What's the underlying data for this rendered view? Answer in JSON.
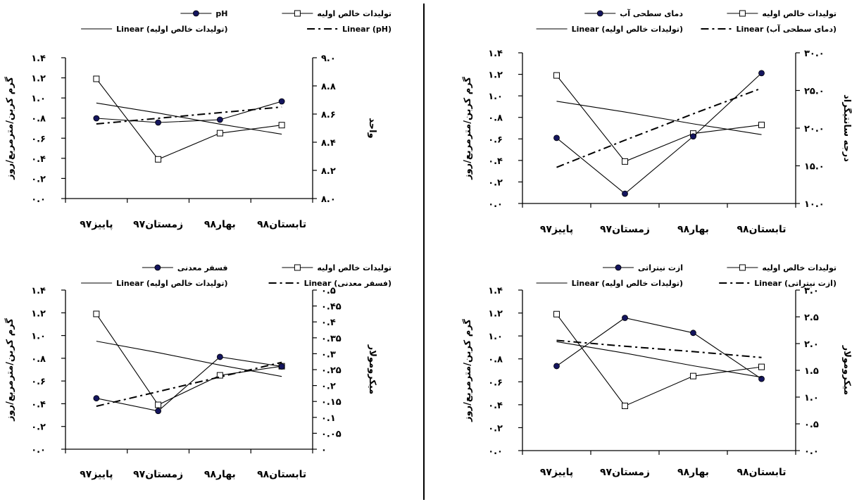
{
  "chart_data": [
    {
      "type": "line",
      "categories": [
        "پاییز۹۷",
        "زمستان۹۷",
        "بهار۹۸",
        "تابستان۹۸"
      ],
      "ylabel": "گرم کربن/مترمربع/روز",
      "ylim": [
        0,
        1.4
      ],
      "yticks": [
        "۰.۰",
        "۰.۲",
        "۰.۴",
        "۰.۶",
        "۰.۸",
        "۱.۰",
        "۱.۲",
        "۱.۴"
      ],
      "y2label": "واحد",
      "y2lim": [
        8.0,
        9.0
      ],
      "y2ticks": [
        "۸.۰",
        "۸.۲",
        "۸.۴",
        "۸.۶",
        "۸.۸",
        "۹.۰"
      ],
      "legend": [
        {
          "label": "تولیدات خالص اولیه",
          "style": "open-square"
        },
        {
          "label": "pH",
          "style": "dot"
        },
        {
          "label": "Linear (pH)",
          "style": "dashdot"
        },
        {
          "label": "Linear (تولیدات خالص اولیه)",
          "style": "plain"
        }
      ],
      "series": [
        {
          "name": "تولیدات خالص اولیه",
          "axis": "left",
          "marker": "square",
          "values": [
            1.19,
            0.39,
            0.65,
            0.73
          ]
        },
        {
          "name": "pH",
          "axis": "right",
          "marker": "dot",
          "values": [
            8.57,
            8.54,
            8.56,
            8.69
          ]
        }
      ],
      "trendlines": [
        {
          "name": "Linear (pH)",
          "axis": "right",
          "style": "dashdot",
          "values": [
            8.53,
            8.57,
            8.61,
            8.65
          ]
        },
        {
          "name": "Linear (تولیدات خالص اولیه)",
          "axis": "left",
          "style": "plain",
          "values": [
            0.95,
            0.85,
            0.74,
            0.64
          ]
        }
      ]
    },
    {
      "type": "line",
      "categories": [
        "پاییز۹۷",
        "زمستان۹۷",
        "بهار۹۸",
        "تابستان۹۸"
      ],
      "ylabel": "گرم کربن/مترمربع/روز",
      "ylim": [
        0,
        1.4
      ],
      "yticks": [
        "۰.۰",
        "۰.۲",
        "۰.۴",
        "۰.۶",
        "۰.۸",
        "۱.۰",
        "۱.۲",
        "۱.۴"
      ],
      "y2label": "درجه سانتیگراد",
      "y2lim": [
        10.0,
        30.0
      ],
      "y2ticks": [
        "۱۰.۰",
        "۱۵.۰",
        "۲۰.۰",
        "۲۵.۰",
        "۳۰.۰"
      ],
      "legend": [
        {
          "label": "تولیدات خالص اولیه",
          "style": "open-square"
        },
        {
          "label": "دمای سطحی آب",
          "style": "dot"
        },
        {
          "label": "Linear (دمای سطحی آب)",
          "style": "dashdot"
        },
        {
          "label": "Linear (تولیدات خالص اولیه)",
          "style": "plain"
        }
      ],
      "series": [
        {
          "name": "تولیدات خالص اولیه",
          "axis": "left",
          "marker": "square",
          "values": [
            1.19,
            0.39,
            0.65,
            0.73
          ]
        },
        {
          "name": "دمای سطحی آب",
          "axis": "right",
          "marker": "dot",
          "values": [
            18.7,
            11.3,
            18.9,
            27.3
          ]
        },
        {
          "name": "Linear (دمای سطحی آب)",
          "axis": "right",
          "style": "dashdot",
          "values": [
            14.8,
            18.4,
            21.9,
            25.3
          ]
        },
        {
          "name": "Linear (تولیدات خالص اولیه)",
          "axis": "left",
          "style": "plain",
          "values": [
            0.95,
            0.85,
            0.74,
            0.64
          ]
        }
      ]
    },
    {
      "type": "line",
      "categories": [
        "پاییز۹۷",
        "زمستان۹۷",
        "بهار۹۸",
        "تابستان۹۸"
      ],
      "ylabel": "گرم کربن/مترمربع/روز",
      "ylim": [
        0,
        1.4
      ],
      "yticks": [
        "۰.۰",
        "۰.۲",
        "۰.۴",
        "۰.۶",
        "۰.۸",
        "۱.۰",
        "۱.۲",
        "۱.۴"
      ],
      "y2label": "میکرومولار",
      "y2lim": [
        0,
        0.5
      ],
      "y2ticks": [
        "۰",
        "۰.۰۵",
        "۰.۱",
        "۰.۱۵",
        "۰.۲",
        "۰.۲۵",
        "۰.۳",
        "۰.۳۵",
        "۰.۴",
        "۰.۴۵",
        "۰.۵"
      ],
      "legend": [
        {
          "label": "تولیدات خالص اولیه",
          "style": "open-square"
        },
        {
          "label": "فسفر معدنی",
          "style": "dot"
        },
        {
          "label": "Linear (فسفر معدنی)",
          "style": "dashdot"
        },
        {
          "label": "Linear (تولیدات خالص اولیه)",
          "style": "plain"
        }
      ],
      "series": [
        {
          "name": "تولیدات خالص اولیه",
          "axis": "left",
          "marker": "square",
          "values": [
            1.19,
            0.39,
            0.65,
            0.73
          ]
        },
        {
          "name": "فسفر معدنی",
          "axis": "right",
          "marker": "dot",
          "values": [
            0.16,
            0.12,
            0.29,
            0.26
          ]
        },
        {
          "name": "Linear (فسفر معدنی)",
          "axis": "right",
          "style": "dashdot",
          "values": [
            0.135,
            0.181,
            0.227,
            0.273
          ]
        },
        {
          "name": "Linear (تولیدات خالص اولیه)",
          "axis": "left",
          "style": "plain",
          "values": [
            0.95,
            0.85,
            0.74,
            0.64
          ]
        }
      ]
    },
    {
      "type": "line",
      "categories": [
        "پاییز۹۷",
        "زمستان۹۷",
        "بهار۹۸",
        "تابستان۹۸"
      ],
      "ylabel": "گرم کربن/مترمربع/روز",
      "ylim": [
        0,
        1.4
      ],
      "yticks": [
        "۰.۰",
        "۰.۲",
        "۰.۴",
        "۰.۶",
        "۰.۸",
        "۱.۰",
        "۱.۲",
        "۱.۴"
      ],
      "y2label": "میکرومولار",
      "y2lim": [
        0,
        3.0
      ],
      "y2ticks": [
        "۰.۰",
        "۰.۵",
        "۱.۰",
        "۱.۵",
        "۲.۰",
        "۲.۵",
        "۳.۰"
      ],
      "legend": [
        {
          "label": "تولیدات خالص اولیه",
          "style": "open-square"
        },
        {
          "label": "ازت نیتراتی",
          "style": "dot"
        },
        {
          "label": "Linear (ازت نیتراتی)",
          "style": "dashdot"
        },
        {
          "label": "Linear (تولیدات خالص اولیه)",
          "style": "plain"
        }
      ],
      "series": [
        {
          "name": "تولیدات خالص اولیه",
          "axis": "left",
          "marker": "square",
          "values": [
            1.19,
            0.39,
            0.65,
            0.73
          ]
        },
        {
          "name": "ازت نیتراتی",
          "axis": "right",
          "marker": "dot",
          "values": [
            1.58,
            2.48,
            2.2,
            1.34
          ]
        },
        {
          "name": "Linear (ازت نیتراتی)",
          "axis": "right",
          "style": "dashdot",
          "values": [
            2.06,
            1.95,
            1.85,
            1.74
          ]
        },
        {
          "name": "Linear (تولیدات خالص اولیه)",
          "axis": "left",
          "style": "plain",
          "values": [
            0.95,
            0.85,
            0.74,
            0.64
          ]
        }
      ]
    }
  ]
}
